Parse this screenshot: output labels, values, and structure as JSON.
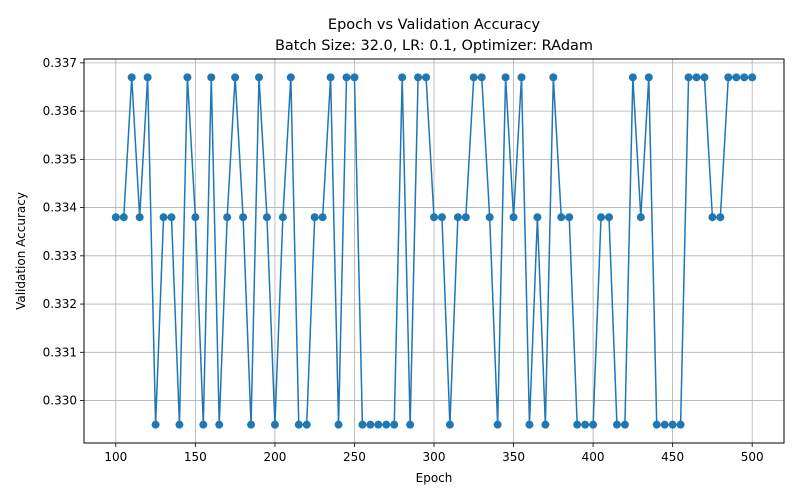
{
  "chart_data": {
    "type": "line",
    "title": "Epoch vs Validation Accuracy",
    "subtitle": "Batch Size: 32.0, LR: 0.1, Optimizer: RAdam",
    "xlabel": "Epoch",
    "ylabel": "Validation Accuracy",
    "xlim": [
      80,
      520
    ],
    "ylim": [
      0.32912,
      0.33708
    ],
    "x_ticks": [
      100,
      150,
      200,
      250,
      300,
      350,
      400,
      450,
      500
    ],
    "y_ticks": [
      0.33,
      0.331,
      0.332,
      0.333,
      0.334,
      0.335,
      0.336,
      0.337
    ],
    "grid": true,
    "color": "#1f77b4",
    "x": [
      100,
      105,
      110,
      115,
      120,
      125,
      130,
      135,
      140,
      145,
      150,
      155,
      160,
      165,
      170,
      175,
      180,
      185,
      190,
      195,
      200,
      205,
      210,
      215,
      220,
      225,
      230,
      235,
      240,
      245,
      250,
      255,
      260,
      265,
      270,
      275,
      280,
      285,
      290,
      295,
      300,
      305,
      310,
      315,
      320,
      325,
      330,
      335,
      340,
      345,
      350,
      355,
      360,
      365,
      370,
      375,
      380,
      385,
      390,
      395,
      400,
      405,
      410,
      415,
      420,
      425,
      430,
      435,
      440,
      445,
      450,
      455,
      460,
      465,
      470,
      475,
      480,
      485,
      490,
      495,
      500
    ],
    "series": [
      {
        "values": [
          0.3338,
          0.3338,
          0.3367,
          0.3338,
          0.3367,
          0.3295,
          0.3338,
          0.3338,
          0.3295,
          0.3367,
          0.3338,
          0.3295,
          0.3367,
          0.3295,
          0.3338,
          0.3367,
          0.3338,
          0.3295,
          0.3367,
          0.3338,
          0.3295,
          0.3338,
          0.3367,
          0.3295,
          0.3295,
          0.3338,
          0.3338,
          0.3367,
          0.3295,
          0.3367,
          0.3367,
          0.3295,
          0.3295,
          0.3295,
          0.3295,
          0.3295,
          0.3367,
          0.3295,
          0.3367,
          0.3367,
          0.3338,
          0.3338,
          0.3295,
          0.3338,
          0.3338,
          0.3367,
          0.3367,
          0.3338,
          0.3295,
          0.3367,
          0.3338,
          0.3367,
          0.3295,
          0.3338,
          0.3295,
          0.3367,
          0.3338,
          0.3338,
          0.3295,
          0.3295,
          0.3295,
          0.3338,
          0.3338,
          0.3295,
          0.3295,
          0.3367,
          0.3338,
          0.3367,
          0.3295,
          0.3295,
          0.3295,
          0.3295,
          0.3367,
          0.3367,
          0.3367,
          0.3338,
          0.3338,
          0.3367,
          0.3367,
          0.3367,
          0.3367
        ]
      }
    ]
  }
}
